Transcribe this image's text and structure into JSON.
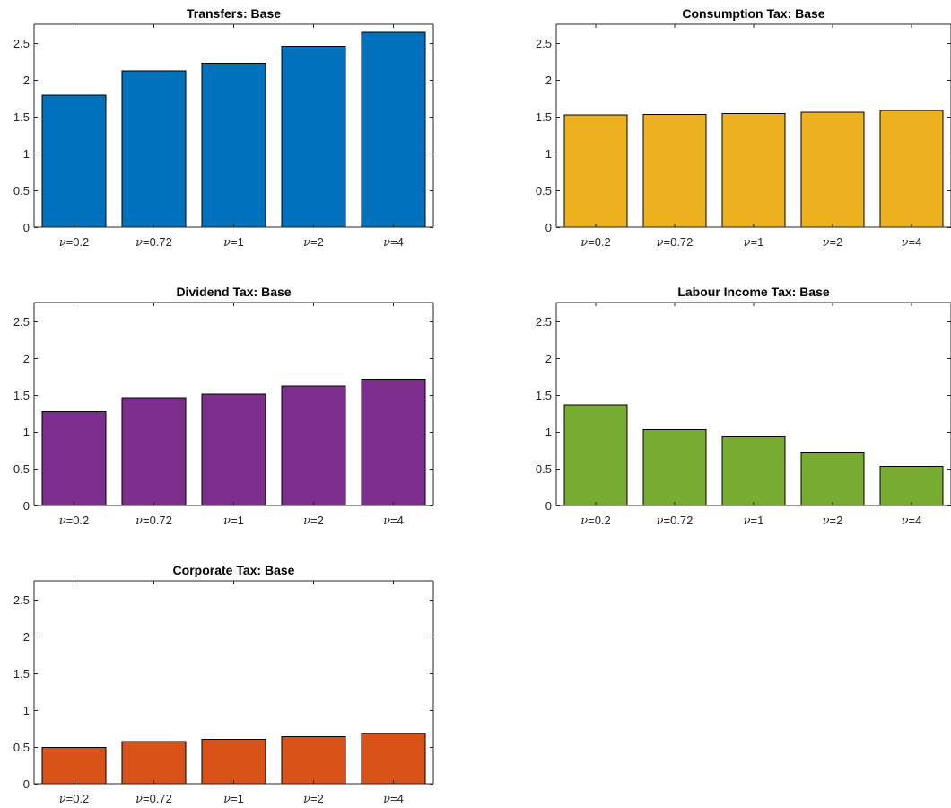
{
  "chart_data": [
    {
      "type": "bar",
      "title": "Transfers: Base",
      "categories": [
        "0.2",
        "0.72",
        "1",
        "2",
        "4"
      ],
      "category_prefix": "ν=",
      "values": [
        1.79,
        2.12,
        2.22,
        2.45,
        2.64
      ],
      "ylim": [
        0,
        2.75
      ],
      "yticks": [
        0,
        0.5,
        1,
        1.5,
        2,
        2.5
      ],
      "color": "#0072BD",
      "xlabel": "",
      "ylabel": ""
    },
    {
      "type": "bar",
      "title": "Consumption Tax: Base",
      "categories": [
        "0.2",
        "0.72",
        "1",
        "2",
        "4"
      ],
      "category_prefix": "ν=",
      "values": [
        1.52,
        1.53,
        1.54,
        1.56,
        1.58
      ],
      "ylim": [
        0,
        2.75
      ],
      "yticks": [
        0,
        0.5,
        1,
        1.5,
        2,
        2.5
      ],
      "color": "#EDB120",
      "xlabel": "",
      "ylabel": ""
    },
    {
      "type": "bar",
      "title": "Dividend Tax: Base",
      "categories": [
        "0.2",
        "0.72",
        "1",
        "2",
        "4"
      ],
      "category_prefix": "ν=",
      "values": [
        1.27,
        1.46,
        1.51,
        1.62,
        1.71
      ],
      "ylim": [
        0,
        2.75
      ],
      "yticks": [
        0,
        0.5,
        1,
        1.5,
        2,
        2.5
      ],
      "color": "#7E2F8E",
      "xlabel": "",
      "ylabel": ""
    },
    {
      "type": "bar",
      "title": "Labour Income Tax: Base",
      "categories": [
        "0.2",
        "0.72",
        "1",
        "2",
        "4"
      ],
      "category_prefix": "ν=",
      "values": [
        1.36,
        1.03,
        0.93,
        0.71,
        0.53
      ],
      "ylim": [
        0,
        2.75
      ],
      "yticks": [
        0,
        0.5,
        1,
        1.5,
        2,
        2.5
      ],
      "color": "#77AC30",
      "xlabel": "",
      "ylabel": ""
    },
    {
      "type": "bar",
      "title": "Corporate Tax: Base",
      "categories": [
        "0.2",
        "0.72",
        "1",
        "2",
        "4"
      ],
      "category_prefix": "ν=",
      "values": [
        0.49,
        0.57,
        0.6,
        0.64,
        0.68
      ],
      "ylim": [
        0,
        2.75
      ],
      "yticks": [
        0,
        0.5,
        1,
        1.5,
        2,
        2.5
      ],
      "color": "#D95319",
      "xlabel": "",
      "ylabel": ""
    }
  ]
}
